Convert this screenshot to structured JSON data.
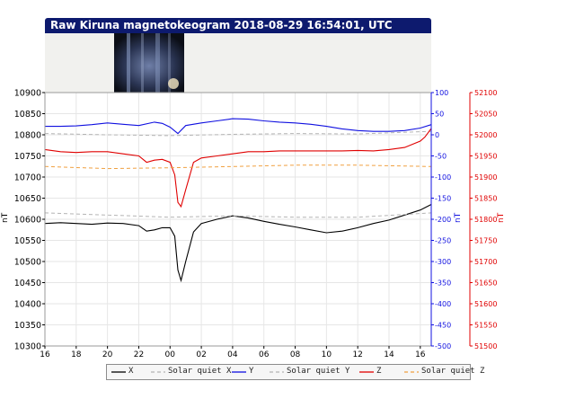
{
  "title": "Raw Kiruna magnetokeogram 2018-08-29 16:54:01, UTC",
  "colors": {
    "title_bar": "#0d1a6e",
    "x": "#000000",
    "y": "#1010e0",
    "z": "#e00000",
    "quiet_x": "#b4b4b4",
    "quiet_y": "#b4b4b4",
    "quiet_z": "#f0a040"
  },
  "chart_data": {
    "type": "line",
    "x_ticks": [
      "16",
      "18",
      "20",
      "22",
      "00",
      "02",
      "04",
      "06",
      "08",
      "10",
      "12",
      "14",
      "16"
    ],
    "x_range_hours": [
      16,
      40.7
    ],
    "left_axis": {
      "label": "nT",
      "range": [
        10300,
        10900
      ],
      "ticks": [
        "10300",
        "10350",
        "10400",
        "10450",
        "10500",
        "10550",
        "10600",
        "10650",
        "10700",
        "10750",
        "10800",
        "10850",
        "10900"
      ]
    },
    "middle_axis": {
      "label": "nT",
      "range": [
        -500,
        100
      ],
      "ticks": [
        "-500",
        "-450",
        "-400",
        "-350",
        "-300",
        "-250",
        "-200",
        "-150",
        "-100",
        "-50",
        "0",
        "50",
        "100"
      ]
    },
    "right_axis": {
      "label": "nT",
      "range": [
        51500,
        52100
      ],
      "ticks": [
        "51500",
        "51550",
        "51600",
        "51650",
        "51700",
        "51750",
        "51800",
        "51850",
        "51900",
        "51950",
        "52000",
        "52050",
        "52100"
      ]
    },
    "series": [
      {
        "name": "X",
        "axis": "left",
        "style": "solid",
        "x": [
          16,
          17,
          18,
          19,
          20,
          21,
          22,
          22.5,
          23,
          23.5,
          24,
          24.3,
          24.5,
          24.7,
          25,
          25.5,
          26,
          27,
          28,
          29,
          30,
          31,
          32,
          33,
          34,
          35,
          36,
          37,
          38,
          39,
          40,
          40.7
        ],
        "y": [
          10590,
          10592,
          10590,
          10588,
          10591,
          10590,
          10585,
          10572,
          10575,
          10580,
          10580,
          10560,
          10480,
          10455,
          10500,
          10570,
          10590,
          10600,
          10608,
          10603,
          10595,
          10588,
          10582,
          10575,
          10568,
          10572,
          10580,
          10590,
          10598,
          10610,
          10622,
          10635
        ]
      },
      {
        "name": "Solar quiet X",
        "axis": "left",
        "style": "dashed",
        "x": [
          16,
          20,
          24,
          28,
          32,
          36,
          40.7
        ],
        "y": [
          10615,
          10610,
          10605,
          10608,
          10605,
          10605,
          10615
        ]
      },
      {
        "name": "Y",
        "axis": "middle",
        "style": "solid",
        "x": [
          16,
          17,
          18,
          19,
          20,
          21,
          22,
          23,
          23.5,
          24,
          24.5,
          25,
          26,
          27,
          28,
          29,
          30,
          31,
          32,
          33,
          34,
          35,
          36,
          37,
          38,
          39,
          40,
          40.7
        ],
        "y": [
          20,
          20,
          21,
          24,
          28,
          25,
          22,
          30,
          27,
          18,
          3,
          22,
          28,
          33,
          38,
          37,
          33,
          30,
          28,
          25,
          20,
          14,
          10,
          8,
          8,
          10,
          16,
          24
        ]
      },
      {
        "name": "Solar quiet Y",
        "axis": "middle",
        "style": "dashed",
        "x": [
          16,
          20,
          24,
          28,
          32,
          36,
          40.7
        ],
        "y": [
          3,
          0,
          -2,
          1,
          3,
          2,
          8
        ]
      },
      {
        "name": "Z",
        "axis": "right",
        "style": "solid",
        "x": [
          16,
          17,
          18,
          19,
          20,
          21,
          22,
          22.5,
          23,
          23.5,
          24,
          24.3,
          24.5,
          24.7,
          25,
          25.5,
          26,
          27,
          28,
          29,
          30,
          31,
          32,
          33,
          34,
          35,
          36,
          37,
          38,
          39,
          40,
          40.3,
          40.7
        ],
        "y": [
          51965,
          51960,
          51958,
          51960,
          51960,
          51955,
          51950,
          51935,
          51940,
          51942,
          51935,
          51905,
          51840,
          51830,
          51870,
          51935,
          51945,
          51950,
          51955,
          51960,
          51960,
          51962,
          51962,
          51962,
          51962,
          51962,
          51963,
          51962,
          51965,
          51970,
          51985,
          51995,
          52015
        ]
      },
      {
        "name": "Solar quiet Z",
        "axis": "right",
        "style": "dashed",
        "x": [
          16,
          20,
          24,
          28,
          32,
          36,
          40.7
        ],
        "y": [
          51925,
          51920,
          51922,
          51925,
          51928,
          51928,
          51925
        ]
      }
    ]
  },
  "legend": [
    "X",
    "Solar quiet X",
    "Y",
    "Solar quiet Y",
    "Z",
    "Solar quiet Z"
  ]
}
